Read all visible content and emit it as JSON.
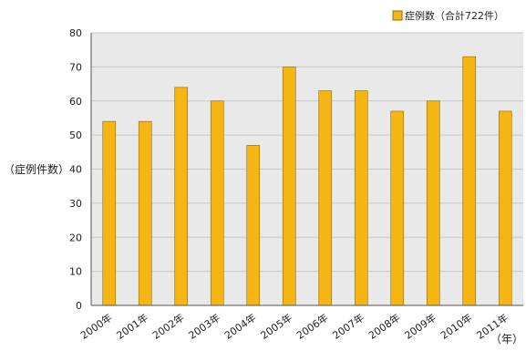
{
  "chart_data": {
    "type": "bar",
    "categories": [
      "2000年",
      "2001年",
      "2002年",
      "2003年",
      "2004年",
      "2005年",
      "2006年",
      "2007年",
      "2008年",
      "2009年",
      "2010年",
      "2011年"
    ],
    "series": [
      {
        "name": "症例数（合計722件）",
        "values": [
          54,
          54,
          64,
          60,
          47,
          70,
          63,
          63,
          57,
          60,
          73,
          57
        ]
      }
    ],
    "xlabel": "（年）",
    "ylabel": "（症例件数）",
    "ylim": [
      0,
      80
    ],
    "yticks": [
      0,
      10,
      20,
      30,
      40,
      50,
      60,
      70,
      80
    ],
    "grid": true,
    "legend_position": "top-right",
    "colors": {
      "bar": "#F5B614",
      "bar_edge": "#8a6a12",
      "plot_bg": "#E9E9E9",
      "grid": "#c8c8c8",
      "axis": "#555555"
    }
  }
}
